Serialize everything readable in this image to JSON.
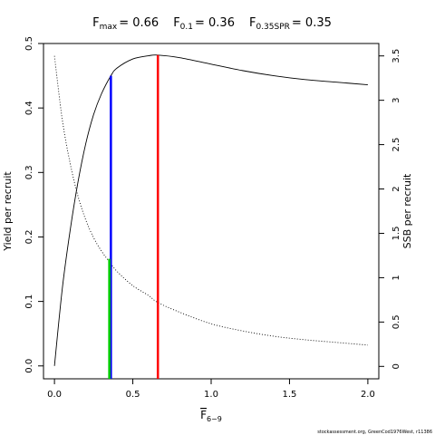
{
  "chart_data": {
    "type": "line",
    "title": {
      "fmax": {
        "base": "F",
        "sub": "max",
        "value": "= 0.66"
      },
      "f01": {
        "base": "F",
        "sub": "0.1",
        "value": "= 0.36"
      },
      "fspr": {
        "base": "F",
        "sub": "0.35SPR",
        "value": "= 0.35"
      }
    },
    "xlabel": {
      "base": "F",
      "sub": "6−9"
    },
    "ylabel": "Yield per recruit",
    "ylabel_right": "SSB per recruit",
    "footnote": "stockassessment.org, GreenCod1976West, r11386",
    "xlim": [
      -0.07,
      2.07
    ],
    "ylim_left": [
      -0.02,
      0.5
    ],
    "ylim_right": [
      -0.14,
      3.64
    ],
    "x_ticks": [
      0,
      0.5,
      1,
      1.5,
      2
    ],
    "x_tick_labels": [
      "0.0",
      "0.5",
      "1.0",
      "1.5",
      "2.0"
    ],
    "y_ticks_left": [
      0,
      0.1,
      0.2,
      0.3,
      0.4,
      0.5
    ],
    "y_tick_labels_left": [
      "0.0",
      "0.1",
      "0.2",
      "0.3",
      "0.4",
      "0.5"
    ],
    "y_ticks_right": [
      0,
      0.5,
      1,
      1.5,
      2,
      2.5,
      3,
      3.5
    ],
    "y_tick_labels_right": [
      "0",
      "0.5",
      "1",
      "1.5",
      "2",
      "2.5",
      "3",
      "3.5"
    ],
    "series": [
      {
        "axis": "left",
        "style": "solid",
        "color": "#000000",
        "x": [
          0,
          0.05,
          0.1,
          0.15,
          0.2,
          0.25,
          0.3,
          0.36,
          0.4,
          0.5,
          0.6,
          0.66,
          0.8,
          1.0,
          1.2,
          1.4,
          1.6,
          1.8,
          2.0
        ],
        "y": [
          0.0,
          0.12,
          0.21,
          0.285,
          0.345,
          0.39,
          0.422,
          0.45,
          0.462,
          0.476,
          0.481,
          0.482,
          0.478,
          0.468,
          0.458,
          0.45,
          0.444,
          0.44,
          0.436
        ]
      },
      {
        "axis": "right",
        "style": "dotted",
        "color": "#000000",
        "x": [
          0,
          0.05,
          0.1,
          0.15,
          0.2,
          0.25,
          0.3,
          0.35,
          0.4,
          0.5,
          0.6,
          0.66,
          0.8,
          1.0,
          1.2,
          1.4,
          1.6,
          1.8,
          2.0
        ],
        "y": [
          3.5,
          2.78,
          2.29,
          1.92,
          1.65,
          1.45,
          1.3,
          1.18,
          1.07,
          0.91,
          0.8,
          0.72,
          0.61,
          0.48,
          0.4,
          0.34,
          0.3,
          0.27,
          0.24
        ]
      }
    ],
    "reference_lines": [
      {
        "name": "fmax",
        "x": 0.66,
        "y_top": 0.482,
        "color": "#ff0000"
      },
      {
        "name": "f01",
        "x": 0.36,
        "y_top": 0.45,
        "color": "#0000ff"
      },
      {
        "name": "fspr",
        "x": 0.35,
        "y_top": 0.166,
        "color": "#00cd00"
      }
    ]
  }
}
